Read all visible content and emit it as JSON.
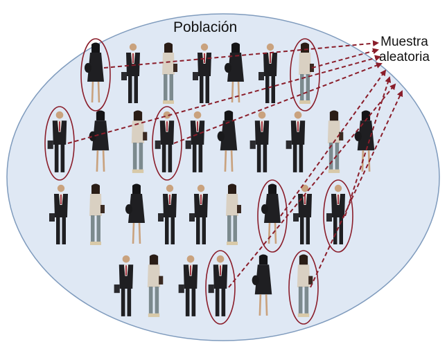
{
  "population_label": "Población",
  "sample_label_line1": "Muestra",
  "sample_label_line2": "aleatoria",
  "colors": {
    "population_fill": "#dfe8f4",
    "population_stroke": "#7f9bbd",
    "selection_ring": "#8a1d2a",
    "arrow": "#8a1d2a",
    "suit": "#1f1f22",
    "shirt_light": "#d9d0c2",
    "skin": "#c9a27e",
    "tie": "#9b2230",
    "pants_light": "#7c8a8e"
  },
  "people": [
    {
      "row": 1,
      "outfit": "woman-dark",
      "selected": true
    },
    {
      "row": 1,
      "outfit": "man-suit",
      "selected": false
    },
    {
      "row": 1,
      "outfit": "woman-casual",
      "selected": false
    },
    {
      "row": 1,
      "outfit": "man-suit",
      "selected": false
    },
    {
      "row": 1,
      "outfit": "woman-dark",
      "selected": false
    },
    {
      "row": 1,
      "outfit": "man-suit",
      "selected": false
    },
    {
      "row": 1,
      "outfit": "woman-casual",
      "selected": true
    },
    {
      "row": 2,
      "outfit": "man-suit",
      "selected": true
    },
    {
      "row": 2,
      "outfit": "woman-dark",
      "selected": false
    },
    {
      "row": 2,
      "outfit": "woman-casual",
      "selected": false
    },
    {
      "row": 2,
      "outfit": "man-suit",
      "selected": true
    },
    {
      "row": 2,
      "outfit": "man-suit",
      "selected": false
    },
    {
      "row": 2,
      "outfit": "woman-dark",
      "selected": false
    },
    {
      "row": 2,
      "outfit": "man-suit",
      "selected": false
    },
    {
      "row": 2,
      "outfit": "man-suit",
      "selected": false
    },
    {
      "row": 2,
      "outfit": "woman-casual",
      "selected": false
    },
    {
      "row": 2,
      "outfit": "woman-dark",
      "selected": false
    },
    {
      "row": 3,
      "outfit": "man-suit",
      "selected": false
    },
    {
      "row": 3,
      "outfit": "woman-casual",
      "selected": false
    },
    {
      "row": 3,
      "outfit": "woman-dark",
      "selected": false
    },
    {
      "row": 3,
      "outfit": "man-suit",
      "selected": false
    },
    {
      "row": 3,
      "outfit": "man-suit",
      "selected": false
    },
    {
      "row": 3,
      "outfit": "woman-casual",
      "selected": false
    },
    {
      "row": 3,
      "outfit": "woman-dark",
      "selected": true
    },
    {
      "row": 3,
      "outfit": "man-suit",
      "selected": false
    },
    {
      "row": 3,
      "outfit": "man-suit",
      "selected": true
    },
    {
      "row": 4,
      "outfit": "man-suit",
      "selected": false
    },
    {
      "row": 4,
      "outfit": "woman-casual",
      "selected": false
    },
    {
      "row": 4,
      "outfit": "man-suit",
      "selected": false
    },
    {
      "row": 4,
      "outfit": "man-suit",
      "selected": true
    },
    {
      "row": 4,
      "outfit": "woman-dark",
      "selected": false
    },
    {
      "row": 4,
      "outfit": "woman-casual",
      "selected": true
    }
  ]
}
